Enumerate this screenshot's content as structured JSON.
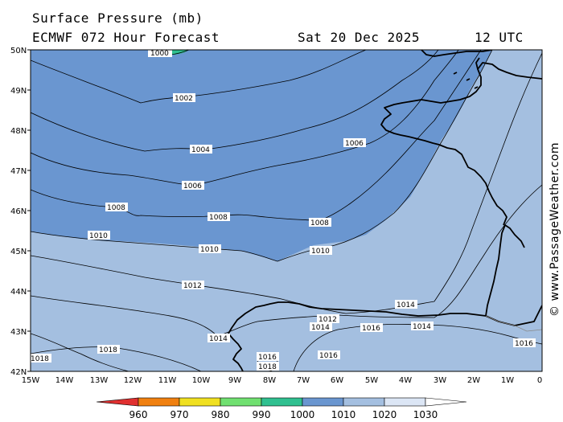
{
  "header": {
    "title": "Surface Pressure (mb)",
    "model": "ECMWF 072 Hour Forecast",
    "date": "Sat 20 Dec 2025",
    "time": "12 UTC"
  },
  "credit": "© www.PassageWeather.com",
  "axes": {
    "lat_labels": [
      "50N",
      "49N",
      "48N",
      "47N",
      "46N",
      "45N",
      "44N",
      "43N",
      "42N"
    ],
    "lon_labels": [
      "15W",
      "14W",
      "13W",
      "12W",
      "11W",
      "10W",
      "9W",
      "8W",
      "7W",
      "6W",
      "5W",
      "4W",
      "3W",
      "2W",
      "1W",
      "0"
    ]
  },
  "isobars": [
    {
      "value": 1000,
      "label": "1000"
    },
    {
      "value": 1002,
      "label": "1002"
    },
    {
      "value": 1004,
      "label": "1004"
    },
    {
      "value": 1006,
      "label": "1006"
    },
    {
      "value": 1008,
      "label": "1008"
    },
    {
      "value": 1010,
      "label": "1010"
    },
    {
      "value": 1012,
      "label": "1012"
    },
    {
      "value": 1014,
      "label": "1014"
    },
    {
      "value": 1016,
      "label": "1016"
    },
    {
      "value": 1018,
      "label": "1018"
    }
  ],
  "isobar_labels": [
    "1000",
    "1002",
    "1004",
    "1006",
    "1006",
    "1008",
    "1008",
    "1008",
    "1010",
    "1010",
    "1010",
    "1012",
    "1012",
    "1014",
    "1014",
    "1014",
    "1014",
    "1016",
    "1016",
    "1016",
    "1016",
    "1018",
    "1018",
    "1018"
  ],
  "color_scale": {
    "labels": [
      "960",
      "970",
      "980",
      "990",
      "1000",
      "1010",
      "1020",
      "1030"
    ],
    "colors": [
      "#e03030",
      "#f08010",
      "#f0e020",
      "#70e070",
      "#30c090",
      "#6a96d0",
      "#a4bfe0",
      "#dce6f5",
      "#ffffff"
    ]
  },
  "colors": {
    "band_1000_1010": "#6a96d0",
    "band_1010_1020": "#a4bfe0",
    "band_990_1000": "#30c090"
  }
}
